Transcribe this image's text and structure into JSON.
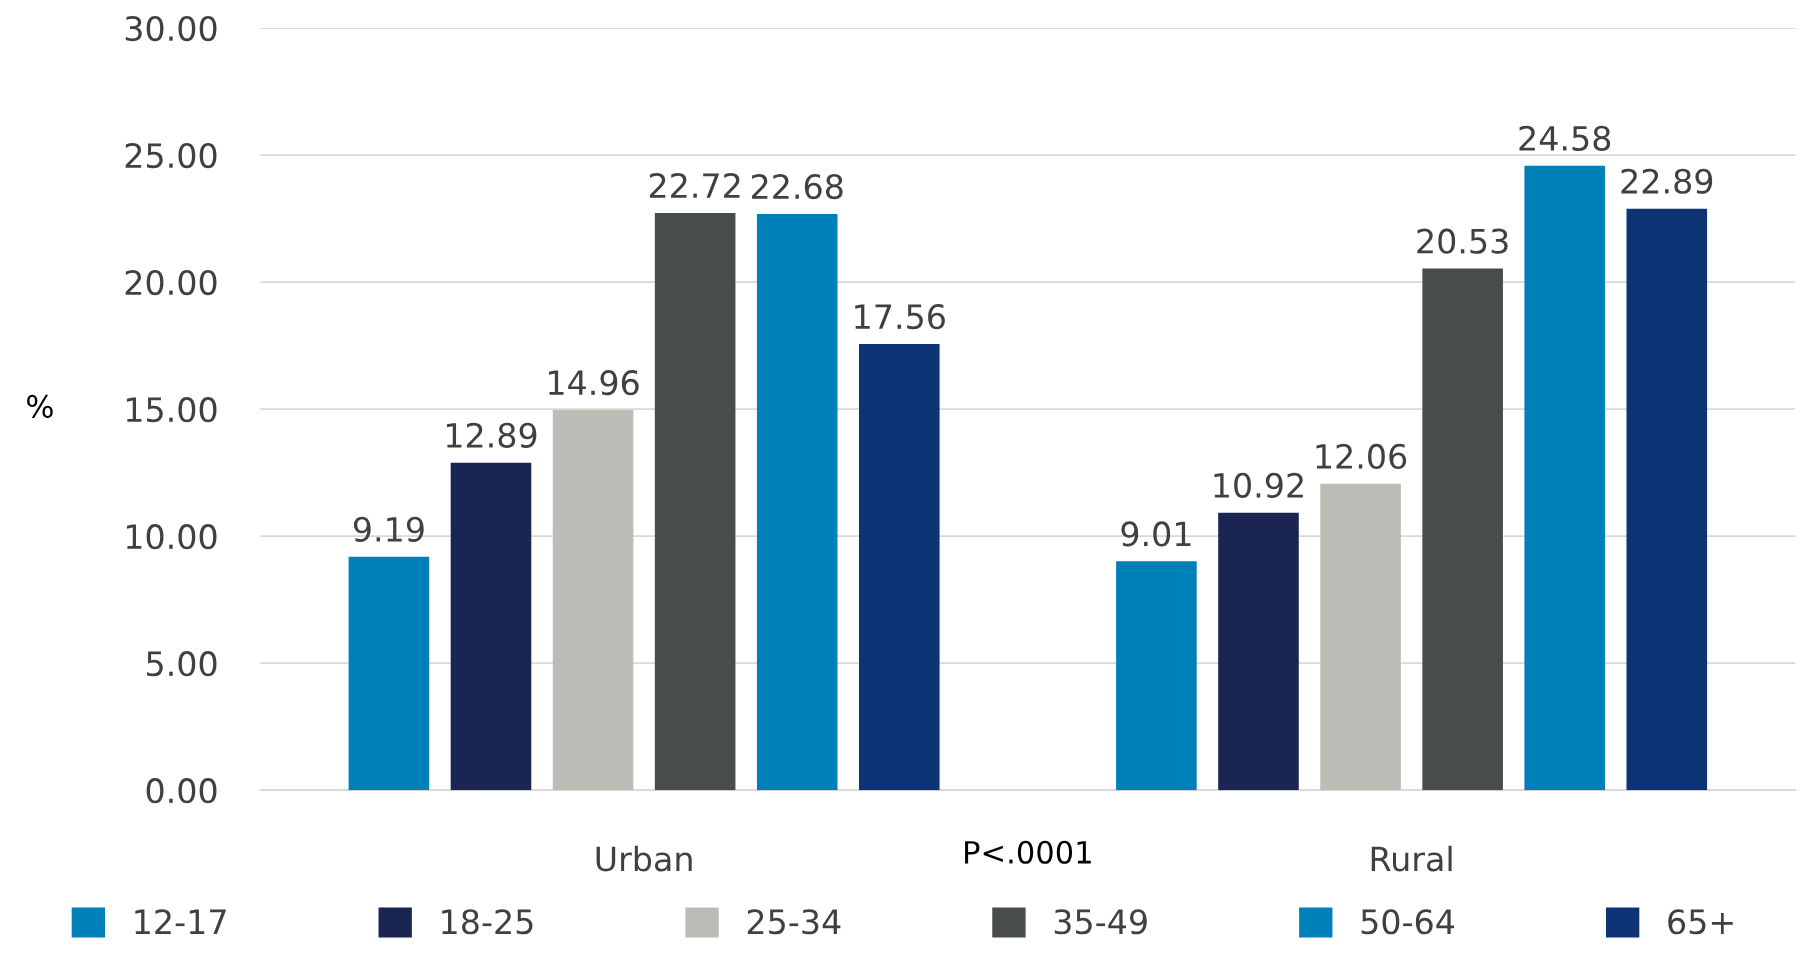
{
  "chart_data": {
    "type": "bar",
    "ylabel": "%",
    "categories": [
      "Urban",
      "Rural"
    ],
    "series": [
      {
        "name": "12-17",
        "color": "#0080b9",
        "values": [
          9.19,
          9.01
        ]
      },
      {
        "name": "18-25",
        "color": "#1a2554",
        "values": [
          12.89,
          10.92
        ]
      },
      {
        "name": "25-34",
        "color": "#bbbcb6",
        "values": [
          14.96,
          12.06
        ]
      },
      {
        "name": "35-49",
        "color": "#484c4c",
        "values": [
          22.72,
          20.53
        ]
      },
      {
        "name": "50-64",
        "color": "#0080b9",
        "values": [
          22.68,
          24.58
        ]
      },
      {
        "name": "65+",
        "color": "#0f3476",
        "values": [
          17.56,
          22.89
        ]
      }
    ],
    "ylim": [
      0,
      30
    ],
    "yticks": [
      {
        "value": 0,
        "label": "0.00"
      },
      {
        "value": 5,
        "label": "5.00"
      },
      {
        "value": 10,
        "label": "10.00"
      },
      {
        "value": 15,
        "label": "15.00"
      },
      {
        "value": 20,
        "label": "20.00"
      },
      {
        "value": 25,
        "label": "25.00"
      },
      {
        "value": 30,
        "label": "30.00"
      }
    ],
    "annotations": [
      "P<.0001"
    ],
    "data_labels": true,
    "grid": "y",
    "legend": "bottom"
  }
}
